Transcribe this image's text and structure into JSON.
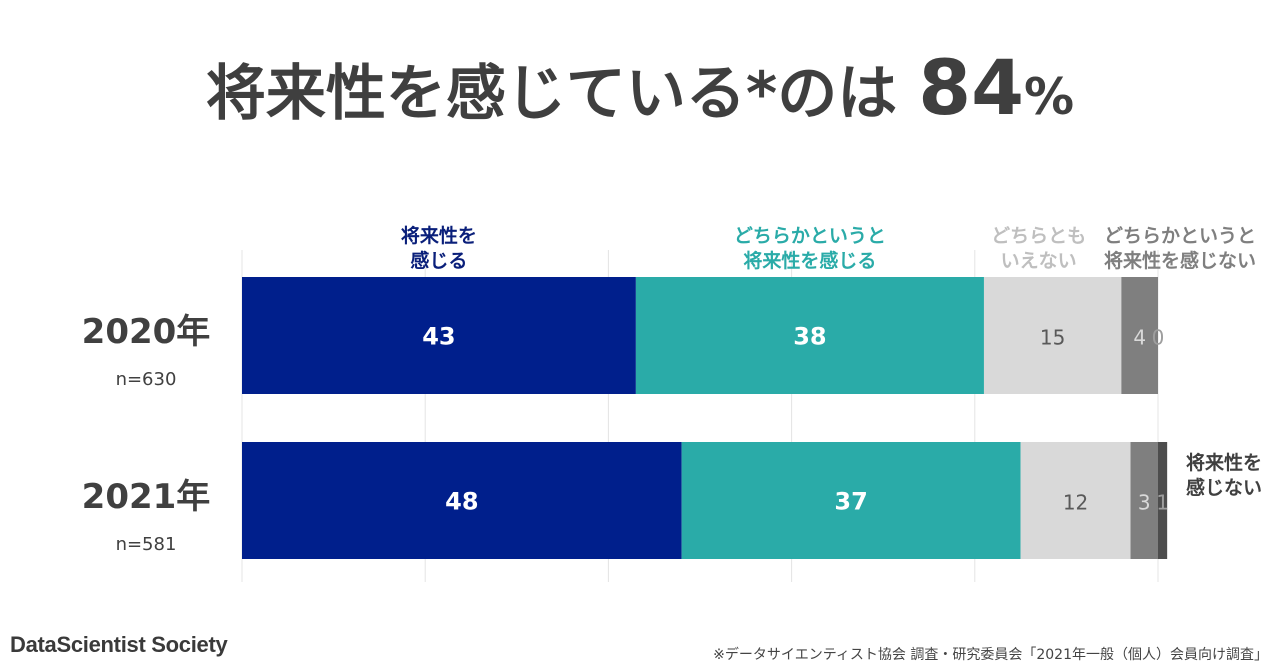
{
  "headline": {
    "text": "将来性を感じている*のは",
    "value": "84",
    "unit": "%"
  },
  "chart_data": {
    "type": "bar",
    "orientation": "horizontal",
    "stacked": true,
    "xlim": [
      0,
      100
    ],
    "grid": true,
    "categories": [
      "2020年",
      "2021年"
    ],
    "category_notes": [
      "n=630",
      "n=581"
    ],
    "series": [
      {
        "name": "将来性を感じる",
        "label_lines": [
          "将来性を",
          "感じる"
        ],
        "color": "#001f8c",
        "label_color": "#0a1f7a",
        "value_color": "#ffffff",
        "values": [
          43,
          48
        ]
      },
      {
        "name": "どちらかというと将来性を感じる",
        "label_lines": [
          "どちらかというと",
          "将来性を感じる"
        ],
        "color": "#2aaba8",
        "label_color": "#2aaba8",
        "value_color": "#ffffff",
        "values": [
          38,
          37
        ]
      },
      {
        "name": "どちらともいえない",
        "label_lines": [
          "どちらとも",
          "いえない"
        ],
        "color": "#d9d9d9",
        "label_color": "#bfbfbf",
        "value_color": "#595959",
        "values": [
          15,
          12
        ]
      },
      {
        "name": "どちらかというと将来性を感じない",
        "label_lines": [
          "どちらかというと",
          "将来性を感じない"
        ],
        "color": "#7f7f7f",
        "label_color": "#7f7f7f",
        "value_color": "#d9d9d9",
        "values": [
          4,
          3
        ]
      },
      {
        "name": "将来性を感じない",
        "label_lines": [
          "将来性を",
          "感じない"
        ],
        "color": "#4d4d4d",
        "label_color": "#404040",
        "value_color": "#9e9e9e",
        "values": [
          0,
          1
        ]
      }
    ]
  },
  "footer": {
    "brand": "DataScientist Society",
    "note": "※データサイエンティスト協会 調査・研究委員会「2021年一般（個人）会員向け調査」"
  }
}
